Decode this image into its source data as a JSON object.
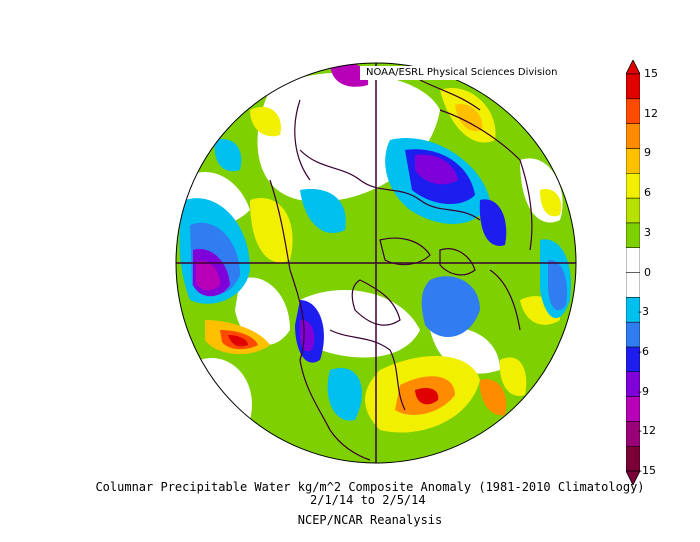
{
  "credit": "NOAA/ESRL Physical Sciences Division",
  "title": "Columnar Precipitable Water kg/m^2 Composite Anomaly (1981-2010 Climatology)",
  "date_range": "2/1/14   to 2/5/14",
  "source": "NCEP/NCAR Reanalysis",
  "colorbar": {
    "ticks": [
      "15",
      "12",
      "9",
      "6",
      "3",
      "0",
      "-3",
      "-6",
      "-9",
      "-12",
      "-15"
    ],
    "colors": [
      "#7a0035",
      "#9a0077",
      "#b800b8",
      "#7f00d8",
      "#1d1df0",
      "#2f7df0",
      "#00c0f0",
      "#ffffff",
      "#ffffff",
      "#7fd000",
      "#b8e000",
      "#f0f000",
      "#ffc000",
      "#ff8c00",
      "#ff4a00",
      "#e00000"
    ]
  }
}
